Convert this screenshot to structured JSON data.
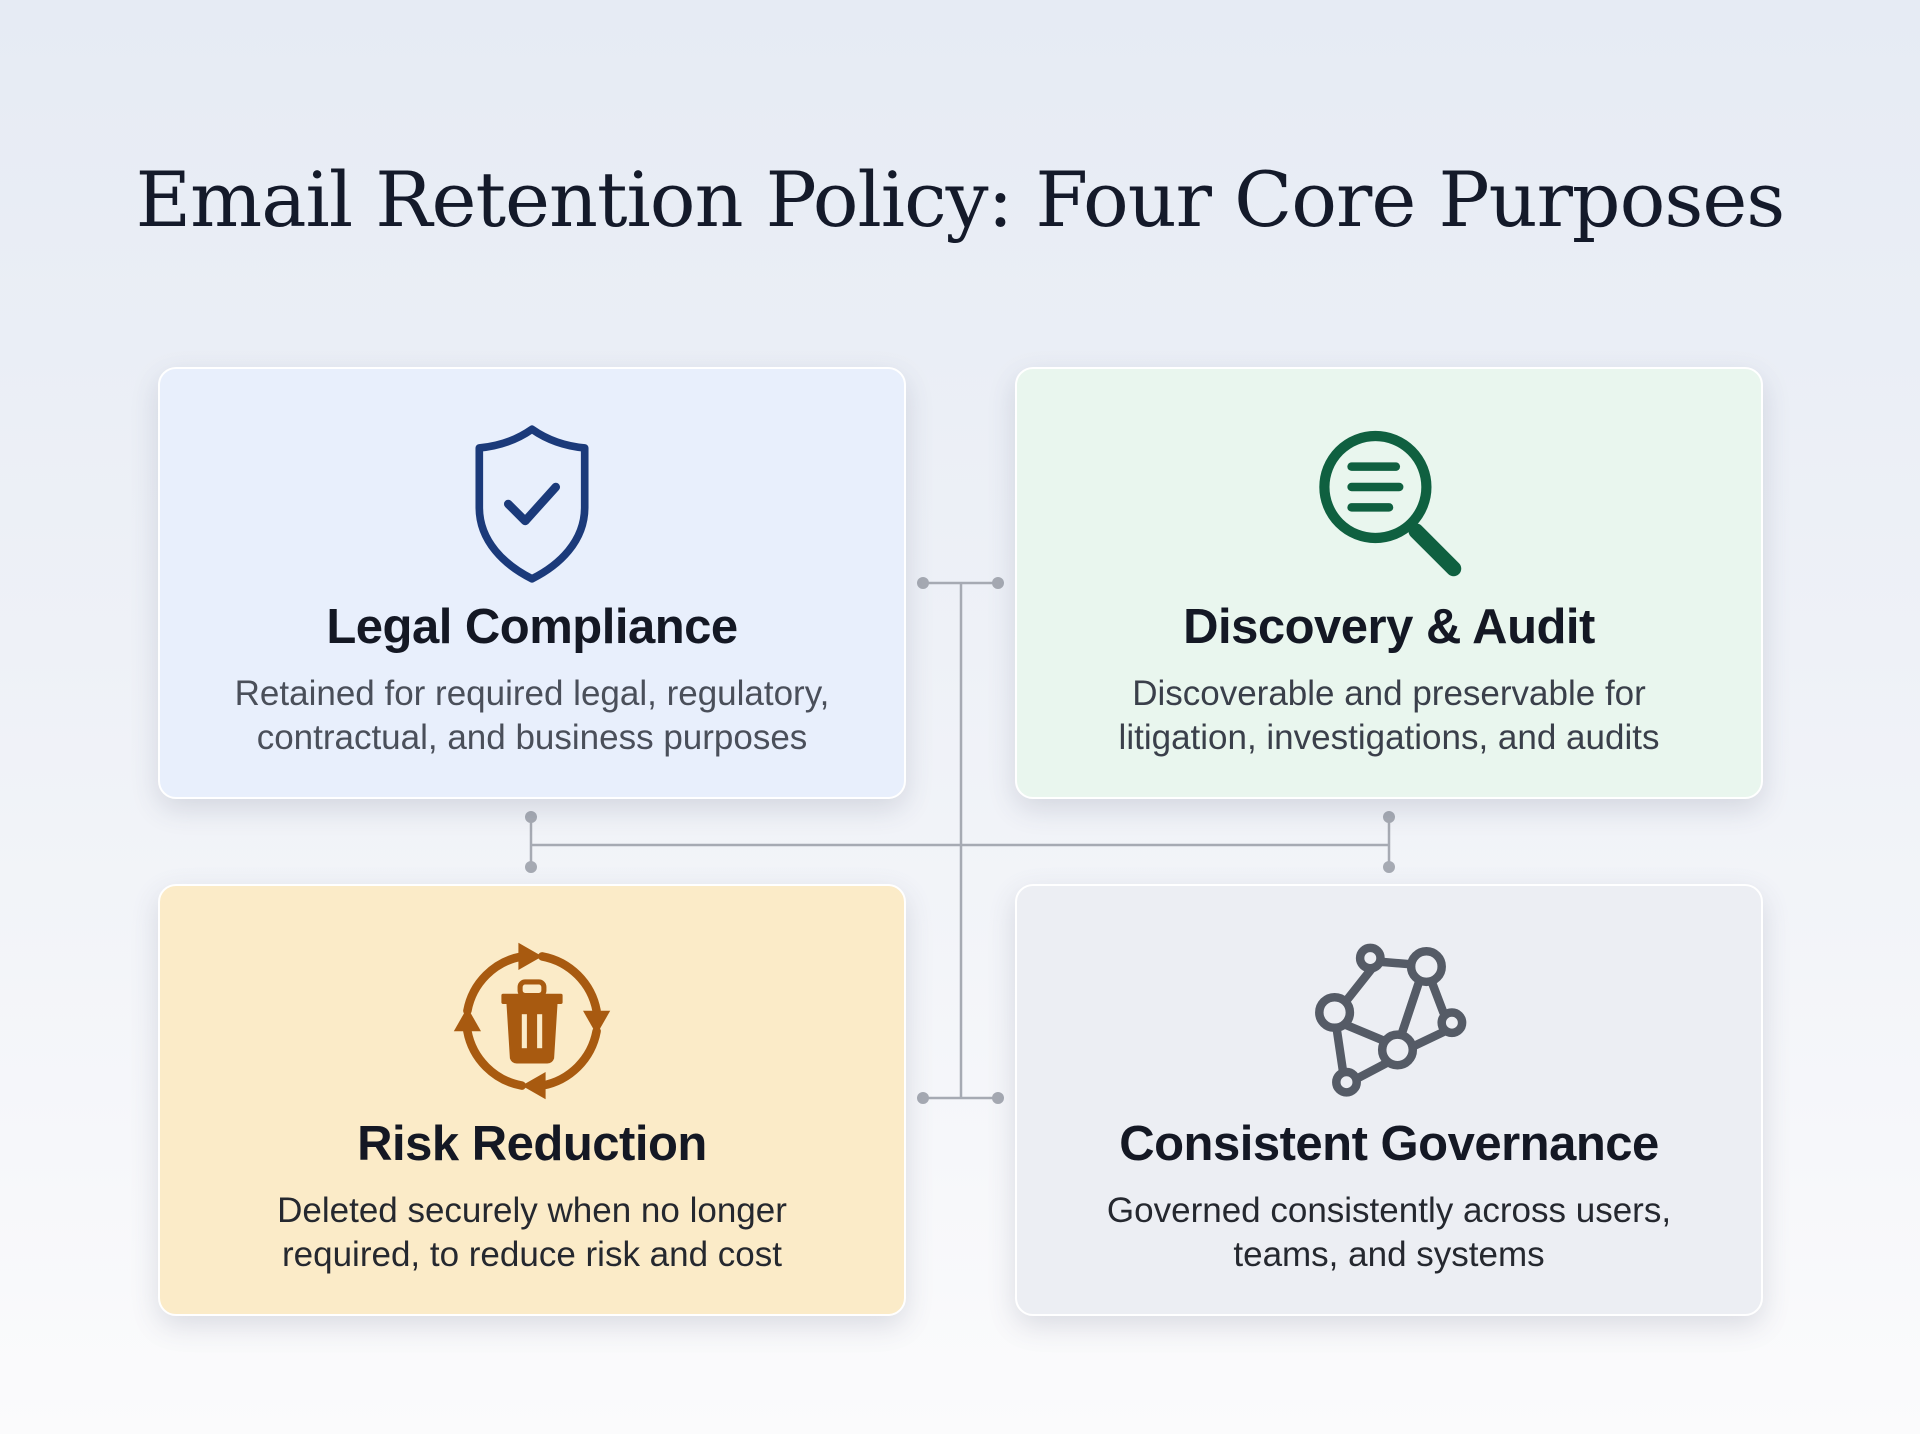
{
  "title": "Email Retention Policy: Four Core Purposes",
  "cards": [
    {
      "title": "Legal Compliance",
      "lines": [
        "Retained for required legal, regulatory,",
        "contractual, and business purposes"
      ],
      "icon": "shield-check-icon",
      "color": "#1b3a7a"
    },
    {
      "title": "Discovery & Audit",
      "lines": [
        "Discoverable and preservable for",
        "litigation, investigations, and audits"
      ],
      "icon": "magnifier-document-icon",
      "color": "#0f6040"
    },
    {
      "title": "Risk Reduction",
      "lines": [
        "Deleted securely when no longer",
        "required, to reduce risk and cost"
      ],
      "icon": "recycle-trash-icon",
      "color": "#a85a10"
    },
    {
      "title": "Consistent Governance",
      "lines": [
        "Governed consistently across users,",
        "teams, and systems"
      ],
      "icon": "network-nodes-icon",
      "color": "#555b66"
    }
  ]
}
